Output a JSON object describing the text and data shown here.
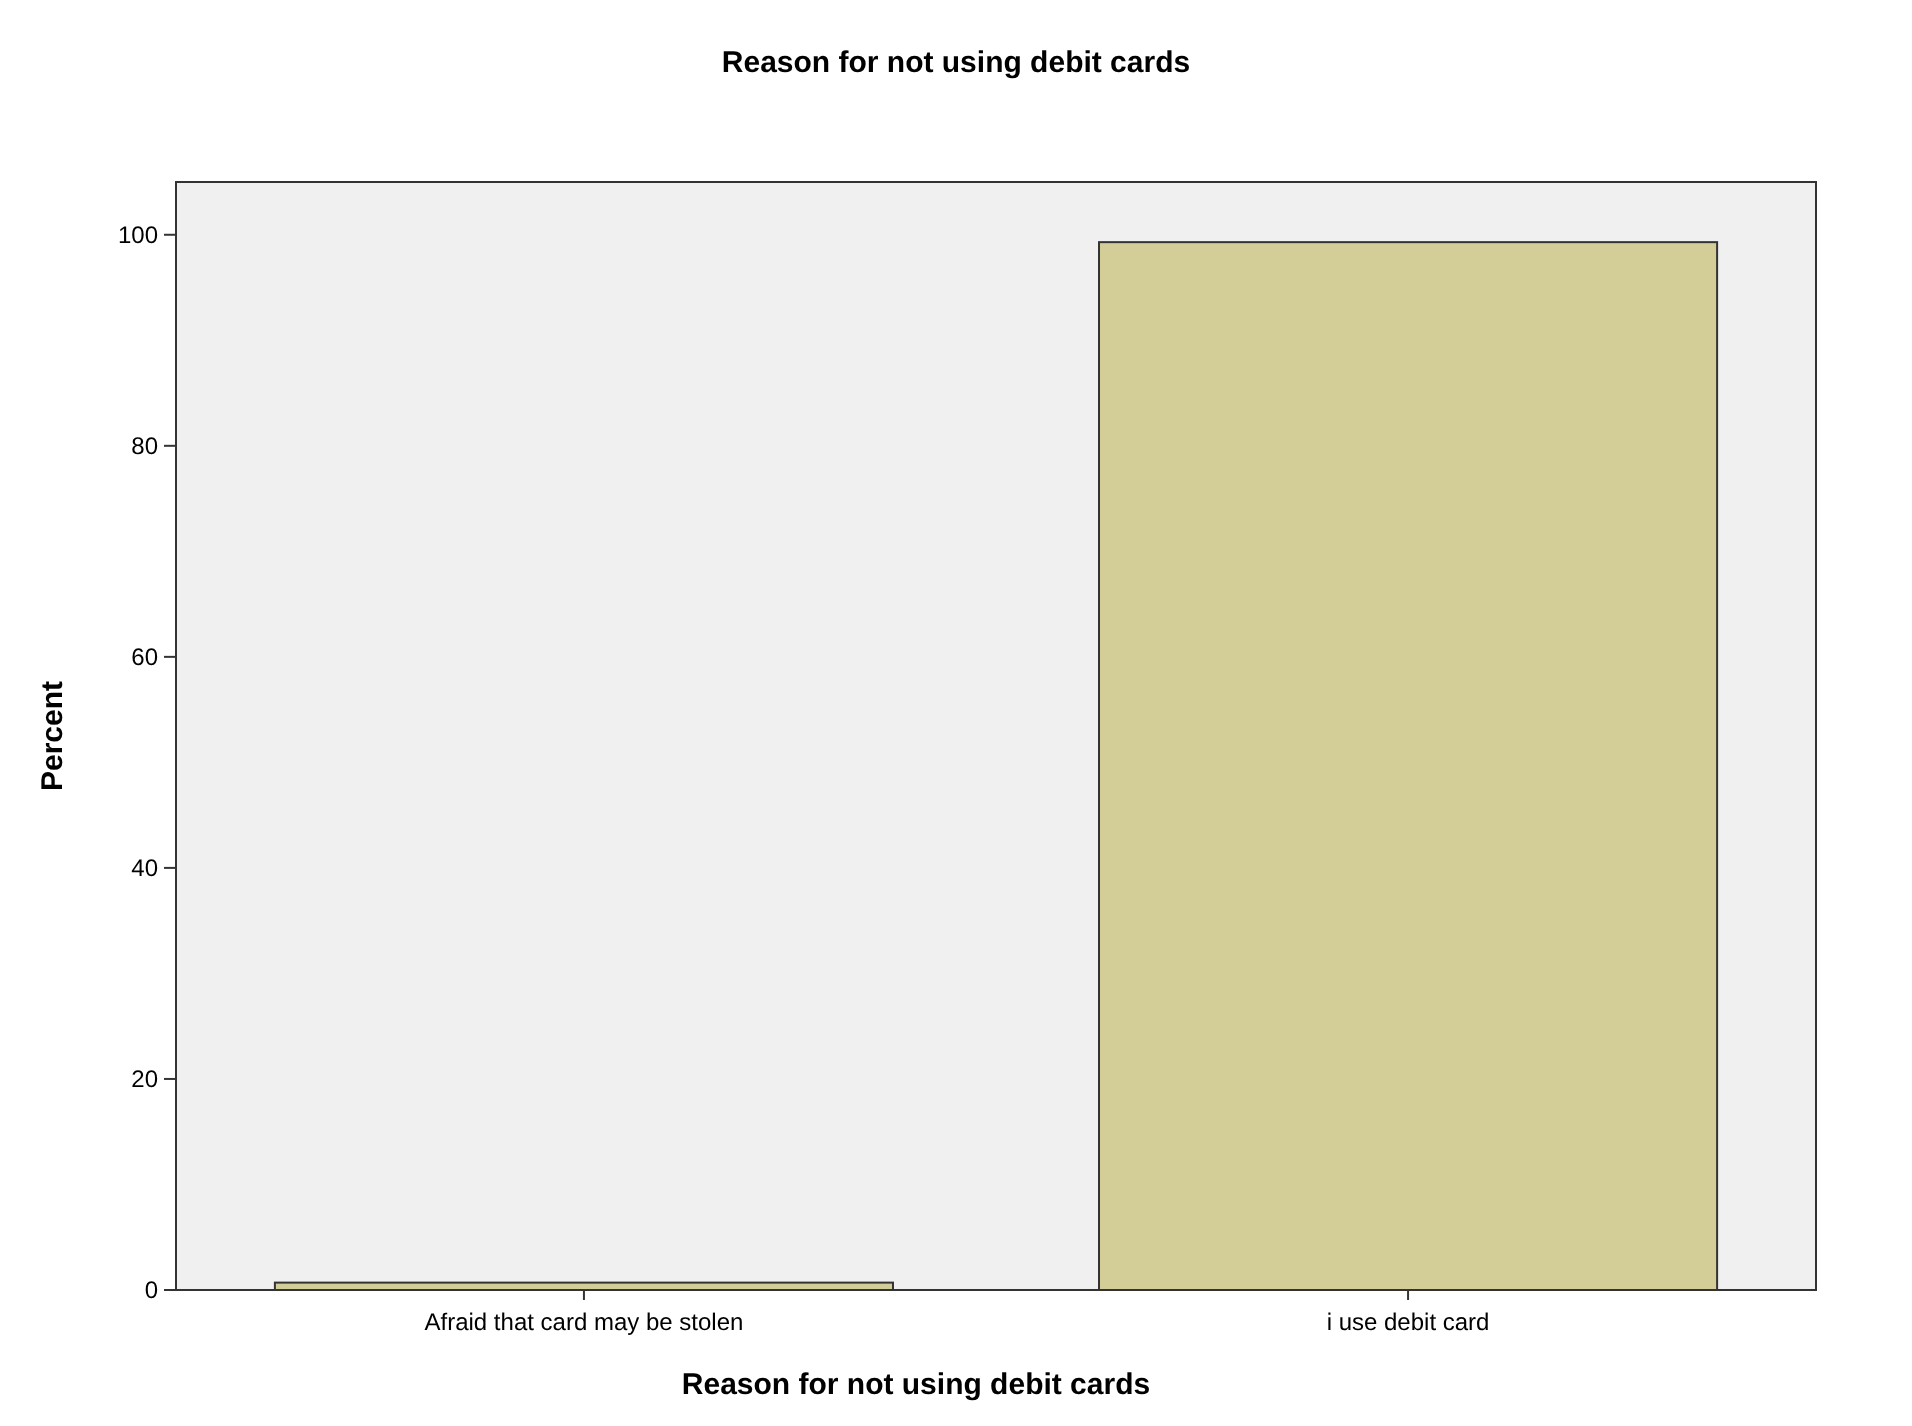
{
  "chart_data": {
    "type": "bar",
    "title": "Reason for not using debit cards",
    "xlabel": "Reason for not using debit cards",
    "ylabel": "Percent",
    "categories": [
      "Afraid that card may be stolen",
      "i use debit card"
    ],
    "values": [
      0.7,
      99.3
    ],
    "color": "#d3ce97",
    "ylim": [
      0,
      105
    ],
    "yticks": [
      0,
      20,
      40,
      60,
      80,
      100
    ],
    "grid": false
  }
}
